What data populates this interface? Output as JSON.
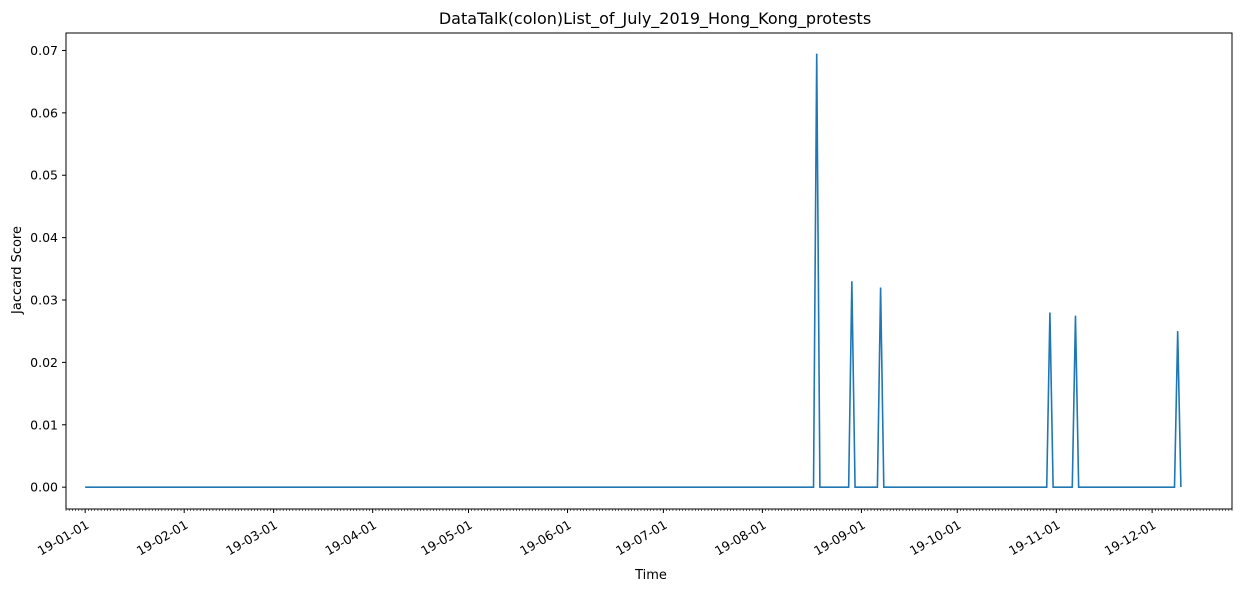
{
  "chart_data": {
    "type": "line",
    "title": "DataTalk(colon)List_of_July_2019_Hong_Kong_protests",
    "xlabel": "Time",
    "ylabel": "Jaccard Score",
    "xlim": [
      "2018-12-26",
      "2019-12-26"
    ],
    "ylim": [
      -0.0035,
      0.0728
    ],
    "grid": false,
    "series_color": "#1f77b4",
    "y_ticks": [
      0.0,
      0.01,
      0.02,
      0.03,
      0.04,
      0.05,
      0.06,
      0.07
    ],
    "y_tick_labels": [
      "0.00",
      "0.01",
      "0.02",
      "0.03",
      "0.04",
      "0.05",
      "0.06",
      "0.07"
    ],
    "x_ticks": [
      "2019-01-01",
      "2019-02-01",
      "2019-03-01",
      "2019-04-01",
      "2019-05-01",
      "2019-06-01",
      "2019-07-01",
      "2019-08-01",
      "2019-09-01",
      "2019-10-01",
      "2019-11-01",
      "2019-12-01"
    ],
    "x_tick_labels": [
      "19-01-01",
      "19-02-01",
      "19-03-01",
      "19-04-01",
      "19-05-01",
      "19-06-01",
      "19-07-01",
      "19-08-01",
      "19-09-01",
      "19-10-01",
      "19-11-01",
      "19-12-01"
    ],
    "series": [
      {
        "points": [
          [
            "2019-01-01",
            0
          ],
          [
            "2019-08-17",
            0
          ],
          [
            "2019-08-18",
            0.0695
          ],
          [
            "2019-08-19",
            0
          ],
          [
            "2019-08-28",
            0
          ],
          [
            "2019-08-29",
            0.033
          ],
          [
            "2019-08-30",
            0
          ],
          [
            "2019-09-06",
            0
          ],
          [
            "2019-09-07",
            0.032
          ],
          [
            "2019-09-08",
            0
          ],
          [
            "2019-10-29",
            0
          ],
          [
            "2019-10-30",
            0.028
          ],
          [
            "2019-10-31",
            0
          ],
          [
            "2019-11-06",
            0
          ],
          [
            "2019-11-07",
            0.0275
          ],
          [
            "2019-11-08",
            0
          ],
          [
            "2019-12-08",
            0
          ],
          [
            "2019-12-09",
            0.025
          ],
          [
            "2019-12-10",
            0
          ]
        ]
      }
    ]
  }
}
